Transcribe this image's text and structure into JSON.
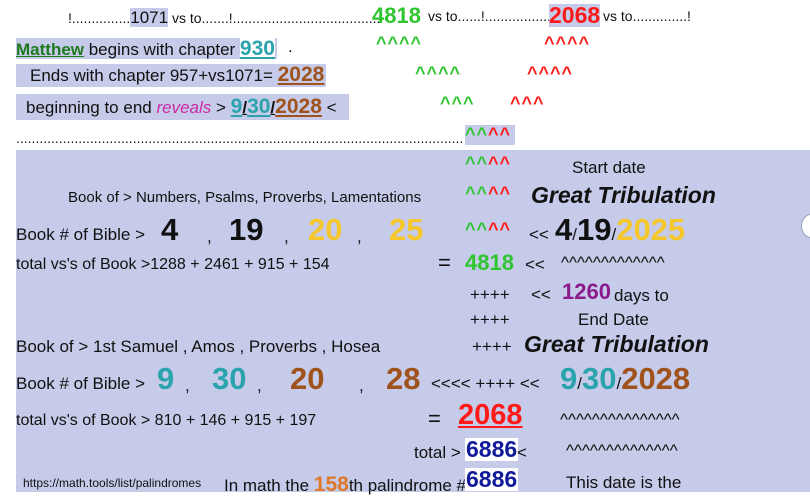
{
  "top": {
    "line1_dots1": "!...............",
    "line1_vs1071": "1071",
    "line1_vsto1": " vs to.......!......................................",
    "line1_4818": "4818",
    "line1_vsto2": " vs to......!..................",
    "line1_2068": "2068",
    "line1_vsto3": " vs to..............!",
    "matthew": "Matthew",
    "begins_text": " begins with chapter ",
    "chapter930": "930",
    "period": ".",
    "ends_text": "Ends with chapter 957+vs1071= ",
    "ends_2028": "2028",
    "beginning_text": "beginning to end ",
    "reveals": "reveals",
    "gt": " > ",
    "date_9": "9",
    "slash": "/",
    "date_30": "30",
    "date_2028": "2028",
    "lt": " <",
    "dots_line": "........................................................................................................................",
    "carets_green": "^^^^",
    "carets_red": "^^^^",
    "carets_g3": "^^^",
    "carets_r3": "^^^",
    "cc_g": "^^",
    "cc_r": "^^"
  },
  "block1": {
    "start_date": "Start date",
    "books_label": "Book of > Numbers,    Psalms,     Proverbs,  Lamentations",
    "great_trib": "Great Tribulation",
    "book_num_label": "Book # of Bible > ",
    "n4": "4",
    "n19": "19",
    "n20": "20",
    "n25": "25",
    "comma": ",",
    "arrow_left": "<< ",
    "d4": "4",
    "d19": "19",
    "d2025": "2025",
    "total_label": "total vs's of Book >1288  +  2461   +    915    +    154",
    "eq": "=",
    "t4818": "4818",
    "ll": "<<",
    "long_carets": "^^^^^^^^^^^^^",
    "plus4": "++++",
    "days_1260": "1260",
    "days_text": " days to",
    "end_date": "End Date"
  },
  "block2": {
    "books_label": "Book of >  1st Samuel ,   Amos   ,    Proverbs   ,   Hosea",
    "great_trib": "Great Tribulation",
    "book_num_label": "Book # of Bible > ",
    "n9": "9",
    "n30": "30",
    "n20": "20",
    "n28": "28",
    "arrows": "<<<< ++++  << ",
    "d9": "9",
    "d30": "30",
    "d2028": "2028",
    "total_label": "total vs's of Book > 810 + 146   +     915      +     197",
    "eq": "=",
    "t2068": "2068",
    "carets_a": "^^^^^^^^^^^^^^^",
    "total_gt": "total >",
    "t6886": "6886",
    "lt_small": " <",
    "carets_b": "^^^^^^^^^^^^^^",
    "url": "https://math.tools/list/palindromes",
    "in_math": "In math the ",
    "n158": "158",
    "th_text": "th palindrome # is ",
    "p6886": "6886",
    "this_date": "This date is the"
  }
}
